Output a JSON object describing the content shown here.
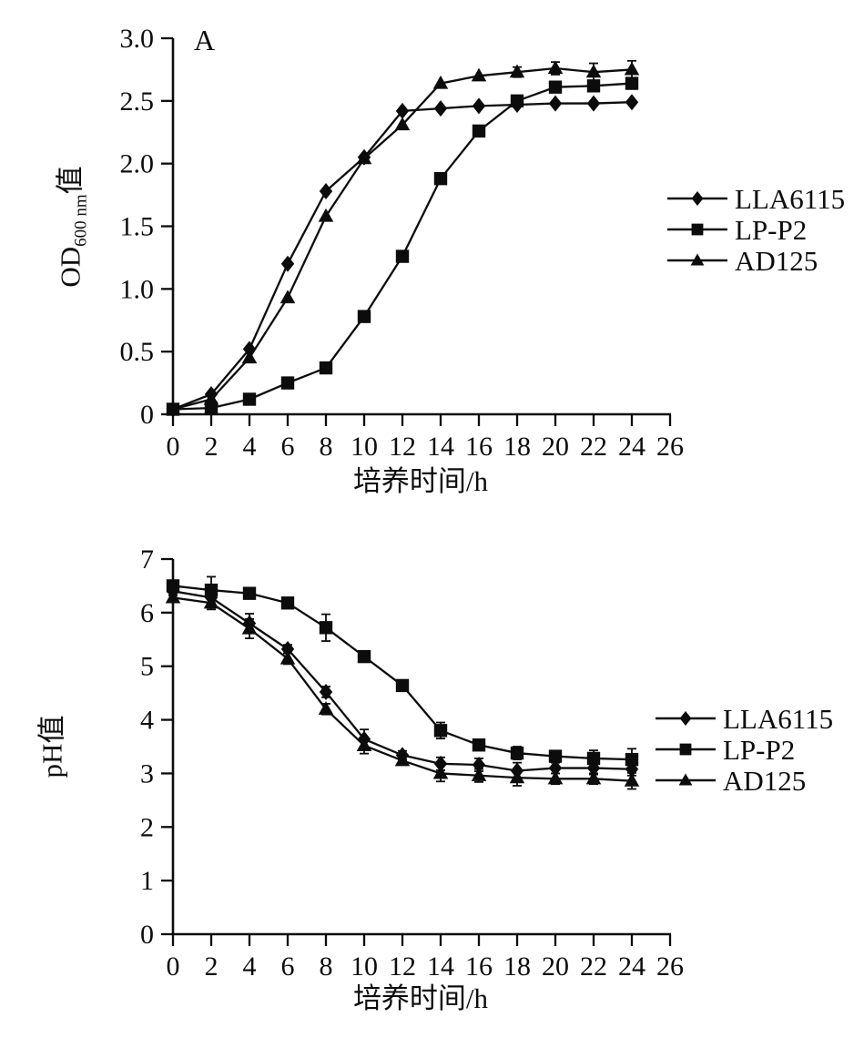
{
  "figure": {
    "background": "#ffffff",
    "ink_color": "#0c0c0c"
  },
  "chart_data": [
    {
      "id": "od-growth-chart",
      "type": "line",
      "panel_label": "A",
      "xlabel": "培养时间/h",
      "ylabel": {
        "prefix": "OD",
        "sub": "600 nm",
        "suffix": "值"
      },
      "xlim": [
        0,
        26
      ],
      "ylim": [
        0,
        3.0
      ],
      "xticks": [
        0,
        2,
        4,
        6,
        8,
        10,
        12,
        14,
        16,
        18,
        20,
        22,
        24,
        26
      ],
      "yticks": [
        0,
        0.5,
        1.0,
        1.5,
        2.0,
        2.5,
        3.0
      ],
      "ytick_labels": [
        "0",
        "0.5",
        "1.0",
        "1.5",
        "2.0",
        "2.5",
        "3.0"
      ],
      "grid": false,
      "legend_position": "right",
      "x": [
        0,
        2,
        4,
        6,
        8,
        10,
        12,
        14,
        16,
        18,
        20,
        22,
        24
      ],
      "series": [
        {
          "name": "LLA6115",
          "marker": "diamond",
          "values": [
            0.04,
            0.16,
            0.52,
            1.2,
            1.78,
            2.05,
            2.42,
            2.44,
            2.46,
            2.47,
            2.48,
            2.48,
            2.49
          ],
          "errors": [
            0,
            0,
            0,
            0,
            0,
            0,
            0,
            0,
            0,
            0,
            0,
            0,
            0
          ]
        },
        {
          "name": "LP-P2",
          "marker": "square",
          "values": [
            0.04,
            0.05,
            0.12,
            0.25,
            0.37,
            0.78,
            1.26,
            1.88,
            2.26,
            2.5,
            2.61,
            2.62,
            2.64
          ],
          "errors": [
            0,
            0,
            0,
            0,
            0,
            0,
            0,
            0,
            0,
            0,
            0,
            0,
            0
          ]
        },
        {
          "name": "AD125",
          "marker": "triangle",
          "values": [
            0.04,
            0.12,
            0.45,
            0.93,
            1.58,
            2.04,
            2.31,
            2.64,
            2.7,
            2.73,
            2.76,
            2.73,
            2.75
          ],
          "errors": [
            0,
            0,
            0,
            0,
            0,
            0,
            0,
            0,
            0,
            0.04,
            0.05,
            0.07,
            0.07
          ]
        }
      ]
    },
    {
      "id": "ph-chart",
      "type": "line",
      "panel_label": "",
      "xlabel": "培养时间/h",
      "ylabel": {
        "prefix": "pH",
        "sub": "",
        "suffix": "值"
      },
      "xlim": [
        0,
        26
      ],
      "ylim": [
        0,
        7
      ],
      "xticks": [
        0,
        2,
        4,
        6,
        8,
        10,
        12,
        14,
        16,
        18,
        20,
        22,
        24,
        26
      ],
      "yticks": [
        0,
        1,
        2,
        3,
        4,
        5,
        6,
        7
      ],
      "ytick_labels": [
        "0",
        "1",
        "2",
        "3",
        "4",
        "5",
        "6",
        "7"
      ],
      "grid": false,
      "legend_position": "right",
      "x": [
        0,
        2,
        4,
        6,
        8,
        10,
        12,
        14,
        16,
        18,
        20,
        22,
        24
      ],
      "series": [
        {
          "name": "LLA6115",
          "marker": "diamond",
          "values": [
            6.4,
            6.28,
            5.8,
            5.32,
            4.52,
            3.64,
            3.34,
            3.18,
            3.16,
            3.05,
            3.1,
            3.1,
            3.08
          ],
          "errors": [
            0.08,
            0.1,
            0.18,
            0.08,
            0.1,
            0.18,
            0.08,
            0.12,
            0.12,
            0.15,
            0.1,
            0.12,
            0.12
          ]
        },
        {
          "name": "LP-P2",
          "marker": "square",
          "values": [
            6.5,
            6.42,
            6.36,
            6.18,
            5.72,
            5.18,
            4.64,
            3.8,
            3.53,
            3.38,
            3.32,
            3.28,
            3.26
          ],
          "errors": [
            0.1,
            0.25,
            0.08,
            0.08,
            0.25,
            0.1,
            0.1,
            0.15,
            0.1,
            0.12,
            0.08,
            0.15,
            0.2
          ]
        },
        {
          "name": "AD125",
          "marker": "triangle",
          "values": [
            6.28,
            6.18,
            5.7,
            5.14,
            4.2,
            3.52,
            3.24,
            3.0,
            2.96,
            2.92,
            2.9,
            2.9,
            2.86
          ],
          "errors": [
            0.08,
            0.12,
            0.18,
            0.1,
            0.1,
            0.15,
            0.08,
            0.15,
            0.12,
            0.15,
            0.1,
            0.1,
            0.15
          ]
        }
      ]
    }
  ]
}
